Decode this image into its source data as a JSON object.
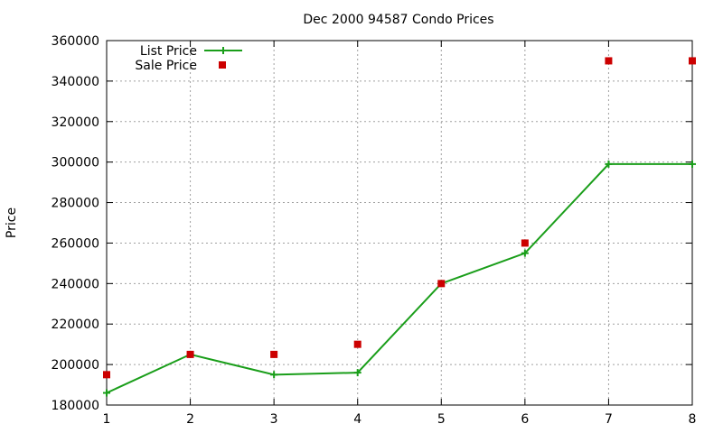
{
  "chart_data": {
    "type": "line",
    "title": "Dec 2000 94587 Condo Prices",
    "xlabel": "",
    "ylabel": "Price",
    "x": [
      1,
      2,
      3,
      4,
      5,
      6,
      7,
      8
    ],
    "xlim": [
      1,
      8
    ],
    "ylim": [
      180000,
      360000
    ],
    "xticks": [
      "1",
      "2",
      "3",
      "4",
      "5",
      "6",
      "7",
      "8"
    ],
    "yticks": [
      "180000",
      "200000",
      "220000",
      "240000",
      "260000",
      "280000",
      "300000",
      "320000",
      "340000",
      "360000"
    ],
    "grid": true,
    "legend_position": "top-left",
    "series": [
      {
        "name": "List Price",
        "style": "line-with-plus-markers",
        "color": "#1a9e1a",
        "values": [
          186000,
          205000,
          195000,
          196000,
          240000,
          255000,
          299000,
          299000
        ]
      },
      {
        "name": "Sale Price",
        "style": "square-markers",
        "color": "#cc0000",
        "values": [
          195000,
          205000,
          205000,
          210000,
          240000,
          260000,
          350000,
          350000
        ]
      }
    ]
  }
}
